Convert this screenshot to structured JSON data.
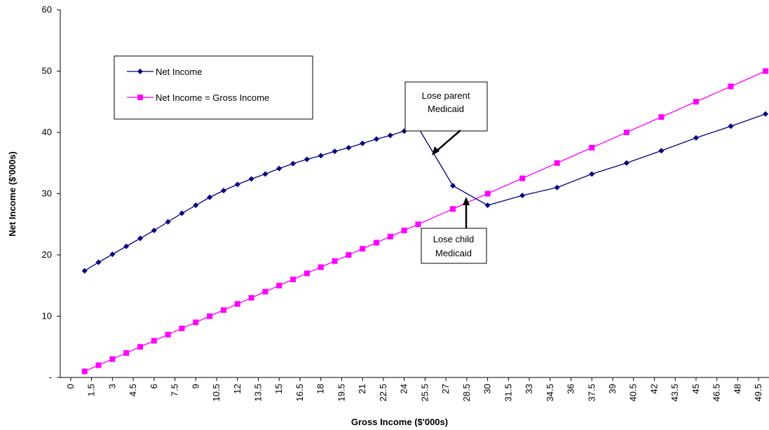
{
  "chart_data": {
    "type": "line",
    "title": "",
    "xlabel": "Gross Income ($'000s)",
    "ylabel": "Net Income ($'000s)",
    "ylim": [
      0,
      60
    ],
    "y_ticks": [
      "-",
      "10",
      "20",
      "30",
      "40",
      "50",
      "60"
    ],
    "x_tick_labels": [
      "0",
      "1.5",
      "3",
      "4.5",
      "6",
      "7.5",
      "9",
      "10.5",
      "12",
      "13.5",
      "15",
      "16.5",
      "18",
      "19.5",
      "21",
      "22.5",
      "24",
      "25.5",
      "27",
      "28.5",
      "30",
      "31.5",
      "33",
      "34.5",
      "36",
      "37.5",
      "39",
      "40.5",
      "42",
      "43.5",
      "45",
      "46.5",
      "48",
      "49.5"
    ],
    "grid": false,
    "legend_position": "top-left",
    "series": [
      {
        "name": "Net Income",
        "color": "#000080",
        "marker": "diamond",
        "x": [
          1,
          2,
          3,
          4,
          5,
          6,
          7,
          8,
          9,
          10,
          11,
          12,
          13,
          14,
          15,
          16,
          17,
          18,
          19,
          20,
          21,
          22,
          23,
          24,
          25,
          27.5,
          30,
          32.5,
          35,
          37.5,
          40,
          42.5,
          45,
          47.5,
          50
        ],
        "values": [
          17.4,
          18.8,
          20.1,
          21.4,
          22.7,
          24.0,
          25.4,
          26.8,
          28.1,
          29.4,
          30.5,
          31.5,
          32.4,
          33.2,
          34.1,
          34.9,
          35.6,
          36.2,
          36.9,
          37.5,
          38.2,
          38.9,
          39.5,
          40.2,
          40.8,
          31.3,
          28.1,
          29.7,
          31.0,
          33.2,
          35.0,
          37.0,
          39.1,
          41.0,
          43.0
        ]
      },
      {
        "name": "Net Income = Gross Income",
        "color": "#FF00FF",
        "marker": "square",
        "x": [
          1,
          2,
          3,
          4,
          5,
          6,
          7,
          8,
          9,
          10,
          11,
          12,
          13,
          14,
          15,
          16,
          17,
          18,
          19,
          20,
          21,
          22,
          23,
          24,
          25,
          27.5,
          30,
          32.5,
          35,
          37.5,
          40,
          42.5,
          45,
          47.5,
          50
        ],
        "values": [
          1,
          2,
          3,
          4,
          5,
          6,
          7,
          8,
          9,
          10,
          11,
          12,
          13,
          14,
          15,
          16,
          17,
          18,
          19,
          20,
          21,
          22,
          23,
          24,
          25,
          27.5,
          30,
          32.5,
          35,
          37.5,
          40,
          42.5,
          45,
          47.5,
          50
        ]
      }
    ],
    "annotations": [
      {
        "lines": [
          "Lose parent",
          "Medicaid"
        ],
        "points_to_x": 26.3,
        "points_to_y": 37.0
      },
      {
        "lines": [
          "Lose child",
          "Medicaid"
        ],
        "points_to_x": 28.8,
        "points_to_y": 30.0
      }
    ]
  }
}
